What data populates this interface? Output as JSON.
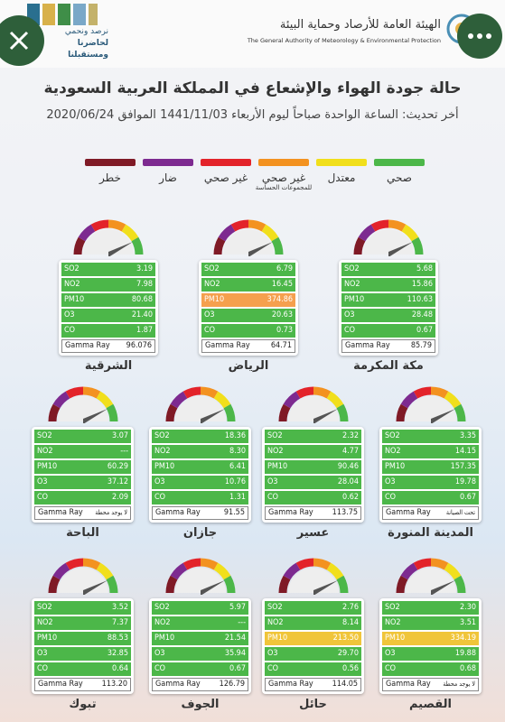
{
  "header": {
    "authority_ar": "الهيئة العامة للأرصاد وحماية البيئة",
    "authority_en": "The General Authority of Meteorology & Environmental Protection",
    "slogan_ar": [
      "نرصد ونحمي",
      "لحاضرنا ومستقبلنا"
    ]
  },
  "title": "حالة جودة الهواء والإشعاع في المملكة العربية السعودية",
  "subtitle": "أخر تحديث: الساعة الواحدة صباحاً ليوم الأربعاء 1441/11/03 الموافق 2020/06/24",
  "legend": [
    {
      "label": [
        "صحي"
      ],
      "color": "#4cb749"
    },
    {
      "label": [
        "معتدل"
      ],
      "color": "#f1df1c"
    },
    {
      "label": [
        "غير صحي",
        "للمجموعات الحساسة"
      ],
      "color": "#f39220"
    },
    {
      "label": [
        "غير صحي"
      ],
      "color": "#e3232a"
    },
    {
      "label": [
        "ضار"
      ],
      "color": "#7d2a90"
    },
    {
      "label": [
        "خطر"
      ],
      "color": "#7f1a26"
    }
  ],
  "pollutants": [
    "SO2",
    "NO2",
    "PM10",
    "O3",
    "CO",
    "Gamma Ray"
  ],
  "stations": [
    {
      "name": "الشرقية",
      "values": [
        "3.19",
        "7.98",
        "80.68",
        "21.40",
        "1.87",
        "96.076"
      ]
    },
    {
      "name": "الرياض",
      "values": [
        "6.79",
        "16.45",
        {
          "value": "374.86",
          "color": "#f5a04e"
        },
        "20.63",
        "0.73",
        "64.71"
      ]
    },
    {
      "name": "مكة المكرمة",
      "values": [
        "5.68",
        "15.86",
        "110.63",
        "28.48",
        "0.67",
        "85.79"
      ]
    },
    {
      "name": "الباحة",
      "values": [
        "3.07",
        "---",
        "60.29",
        "37.12",
        "2.09",
        "لا يوجد محطة"
      ]
    },
    {
      "name": "جازان",
      "values": [
        "18.36",
        "8.30",
        "6.41",
        "10.76",
        "1.31",
        "91.55"
      ]
    },
    {
      "name": "عسير",
      "values": [
        "2.32",
        "4.77",
        "90.46",
        "28.04",
        "0.62",
        "113.75"
      ]
    },
    {
      "name": "المدينة المنورة",
      "values": [
        "3.35",
        "14.15",
        "157.35",
        "19.78",
        "0.67",
        "تحت الصيانة"
      ]
    },
    {
      "name": "تبوك",
      "values": [
        "3.52",
        "7.37",
        "88.53",
        "32.85",
        "0.64",
        "113.20"
      ]
    },
    {
      "name": "الجوف",
      "values": [
        "5.97",
        "---",
        "21.54",
        "35.94",
        "0.67",
        "126.79"
      ]
    },
    {
      "name": "حائل",
      "values": [
        "2.76",
        "8.14",
        {
          "value": "213.50",
          "color": "#f0c53a"
        },
        "29.70",
        "0.56",
        "114.05"
      ]
    },
    {
      "name": "القصيم",
      "values": [
        "2.30",
        "3.51",
        {
          "value": "334.19",
          "color": "#f0c53a"
        },
        "19.88",
        "0.68",
        "لا يوجد محطة"
      ]
    }
  ]
}
